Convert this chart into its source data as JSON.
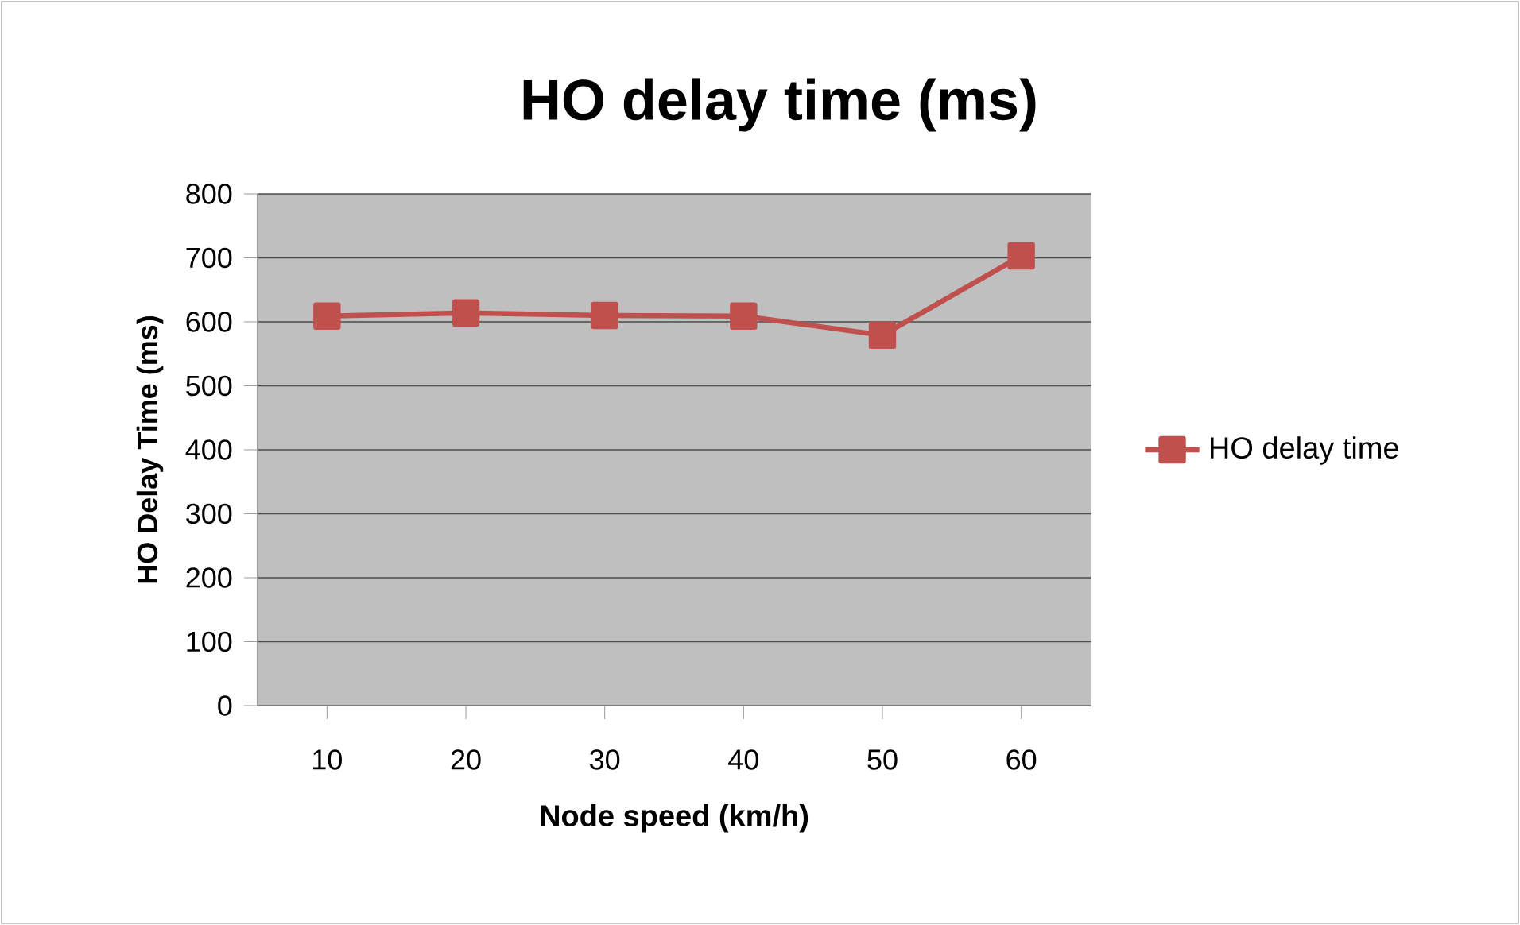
{
  "chart_data": {
    "type": "line",
    "title": "HO  delay time (ms)",
    "xlabel": "Node speed (km/h)",
    "ylabel": "HO Delay Time (ms)",
    "categories": [
      "10",
      "20",
      "30",
      "40",
      "50",
      "60"
    ],
    "series": [
      {
        "name": "HO  delay time",
        "color": "#c0504d",
        "values": [
          609,
          614,
          610,
          609,
          579,
          703
        ]
      }
    ],
    "ylim": [
      0,
      800
    ],
    "yticks": [
      0,
      100,
      200,
      300,
      400,
      500,
      600,
      700,
      800
    ],
    "grid": "y",
    "legend": "right",
    "marker": "square",
    "line_style": "solid"
  }
}
